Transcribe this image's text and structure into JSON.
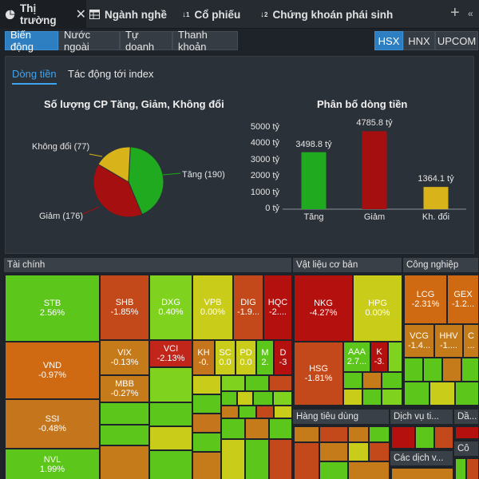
{
  "top_tabs": [
    {
      "label": "Thị trường",
      "icon": "pie-chart-icon"
    },
    {
      "label": "Ngành nghề",
      "icon": "table-icon"
    },
    {
      "label": "Cổ phiếu",
      "icon": "sort-icon"
    },
    {
      "label": "Chứng khoán phái sinh",
      "icon": "sort-numeric-icon"
    }
  ],
  "sub_tabs": [
    "Biến động",
    "Nước ngoài",
    "Tự doanh",
    "Thanh khoản"
  ],
  "exchanges": [
    "HSX",
    "HNX",
    "UPCOM"
  ],
  "panel_tabs": [
    "Dòng tiền",
    "Tác động tới index"
  ],
  "pie_title": "Số lượng CP Tăng, Giảm, Không đổi",
  "pie_labels": {
    "unchanged": "Không đổi (77)",
    "up": "Tăng (190)",
    "down": "Giảm (176)"
  },
  "bar_title": "Phân bố dòng tiền",
  "colors": {
    "up": "#1faa1f",
    "down": "#a50f0f",
    "unchanged": "#d8b41a",
    "accent": "#2e7fc1"
  },
  "chart_data": [
    {
      "type": "pie",
      "title": "Số lượng CP Tăng, Giảm, Không đổi",
      "labels": [
        "Tăng",
        "Giảm",
        "Không đổi"
      ],
      "values": [
        190,
        176,
        77
      ]
    },
    {
      "type": "bar",
      "title": "Phân bố dòng tiền",
      "categories": [
        "Tăng",
        "Giảm",
        "Kh. đổi"
      ],
      "values": [
        3498.8,
        4785.8,
        1364.1
      ],
      "value_labels": [
        "3498.8 tỷ",
        "4785.8 tỷ",
        "1364.1 tỷ"
      ],
      "yticks": [
        "0 tỷ",
        "1000 tỷ",
        "2000 tỷ",
        "3000 tỷ",
        "4000 tỷ",
        "5000 tỷ"
      ],
      "ylim": [
        0,
        5000
      ]
    }
  ],
  "sectors": {
    "tai_chinh": "Tài chính",
    "vat_lieu": "Vật liệu cơ bản",
    "cong_nghiep": "Công nghiệp",
    "hang_tieu_dung": "Hàng tiêu dùng",
    "dich_vu": "Dịch vụ ti...",
    "cac_dich_vu": "Các dịch v...",
    "da": "Dầ...",
    "co": "Cô"
  },
  "stocks": {
    "STB": {
      "name": "STB",
      "chg": "2.56%"
    },
    "VND": {
      "name": "VND",
      "chg": "-0.97%"
    },
    "SSI": {
      "name": "SSI",
      "chg": "-0.48%"
    },
    "NVL": {
      "name": "NVL",
      "chg": "1.99%"
    },
    "SHB": {
      "name": "SHB",
      "chg": "-1.85%"
    },
    "DXG": {
      "name": "DXG",
      "chg": "0.40%"
    },
    "VPB": {
      "name": "VPB",
      "chg": "0.00%"
    },
    "DIG": {
      "name": "DIG",
      "chg": "-1.9..."
    },
    "HQC": {
      "name": "HQC",
      "chg": "-2...."
    },
    "VIX": {
      "name": "VIX",
      "chg": "-0.13%"
    },
    "VCI": {
      "name": "VCI",
      "chg": "-2.13%"
    },
    "KH": {
      "name": "KH",
      "chg": "-0."
    },
    "SC": {
      "name": "SC",
      "chg": "0.0"
    },
    "PD": {
      "name": "PD",
      "chg": "0.0"
    },
    "M": {
      "name": "M",
      "chg": "2."
    },
    "D": {
      "name": "D",
      "chg": "-3"
    },
    "MBB": {
      "name": "MBB",
      "chg": "-0.27%"
    },
    "NKG": {
      "name": "NKG",
      "chg": "-4.27%"
    },
    "HPG": {
      "name": "HPG",
      "chg": "0.00%"
    },
    "HSG": {
      "name": "HSG",
      "chg": "-1.81%"
    },
    "AAA": {
      "name": "AAA",
      "chg": "2.7..."
    },
    "K": {
      "name": "K",
      "chg": "-3."
    },
    "LCG": {
      "name": "LCG",
      "chg": "-2.31%"
    },
    "GEX": {
      "name": "GEX",
      "chg": "-1.2..."
    },
    "VCG": {
      "name": "VCG",
      "chg": "-1.4..."
    },
    "HHV": {
      "name": "HHV",
      "chg": "-1...."
    },
    "C": {
      "name": "C",
      "chg": "..."
    }
  }
}
